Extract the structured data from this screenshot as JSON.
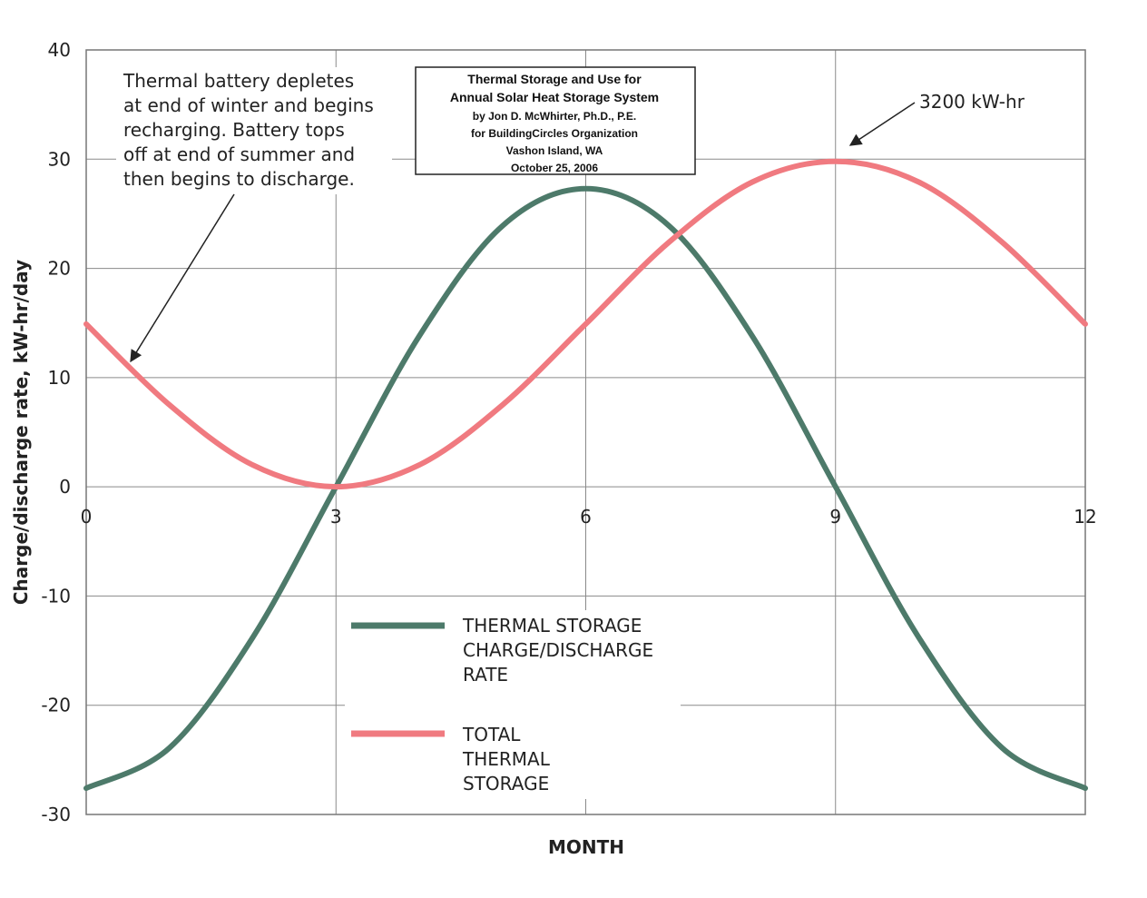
{
  "chart_data": {
    "type": "line",
    "title_block": [
      "Thermal Storage and Use for",
      "Annual Solar Heat Storage System",
      "by Jon D. McWhirter, Ph.D., P.E.",
      "for BuildingCircles Organization",
      "Vashon Island, WA",
      "October 25, 2006"
    ],
    "xlabel": "MONTH",
    "ylabel": "Charge/discharge rate, kW-hr/day",
    "xlim": [
      0,
      12
    ],
    "ylim": [
      -30,
      40
    ],
    "x_ticks": [
      "0",
      "3",
      "6",
      "9",
      "12"
    ],
    "y_ticks": [
      "40",
      "30",
      "20",
      "10",
      "0",
      "-10",
      "-20",
      "-30"
    ],
    "grid": true,
    "series": [
      {
        "name": [
          "THERMAL STORAGE",
          "CHARGE/DISCHARGE",
          "RATE"
        ],
        "color": "#4d7a6a",
        "x": [
          0,
          1,
          2,
          3,
          4,
          5,
          6,
          7,
          8,
          9,
          10,
          11,
          12
        ],
        "y": [
          -27.6,
          -23.9,
          -13.8,
          0,
          13.8,
          23.9,
          27.3,
          23.9,
          13.8,
          0,
          -13.8,
          -23.9,
          -27.6
        ]
      },
      {
        "name": [
          "TOTAL",
          "THERMAL",
          "STORAGE"
        ],
        "color": "#f07a80",
        "x": [
          0,
          1,
          2,
          3,
          4,
          5,
          6,
          7,
          8,
          9,
          10,
          11,
          12
        ],
        "y": [
          14.9,
          7.5,
          2.0,
          0,
          2.0,
          7.5,
          14.9,
          22.4,
          27.9,
          29.8,
          27.9,
          22.4,
          14.9
        ]
      }
    ],
    "annotations": [
      {
        "lines": [
          "Thermal battery depletes",
          "at end of winter and begins",
          "recharging.  Battery tops",
          "off at end of summer and",
          "then begins to discharge."
        ]
      },
      {
        "lines": [
          "3200 kW-hr"
        ]
      }
    ]
  }
}
